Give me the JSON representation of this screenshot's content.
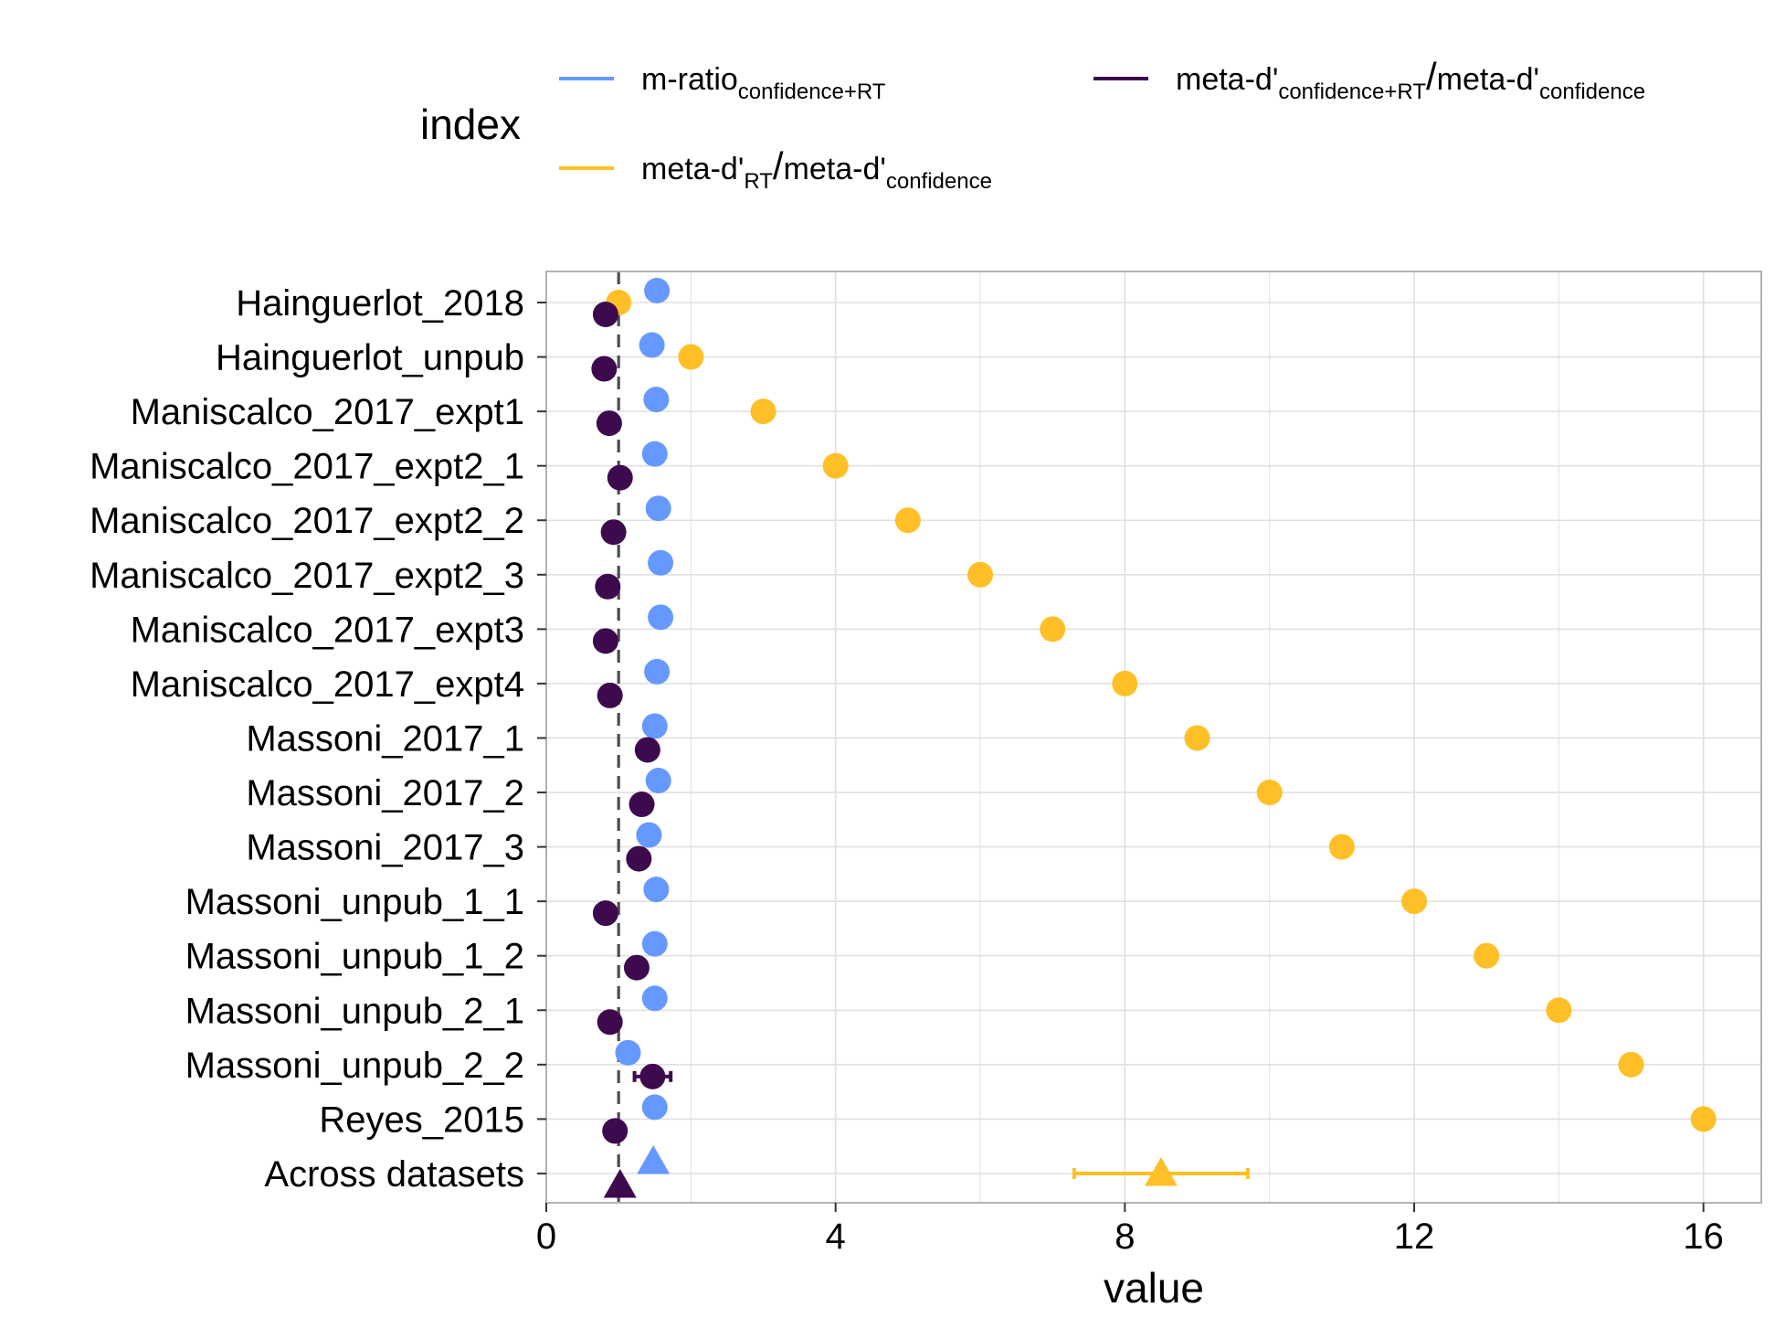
{
  "chart_data": {
    "type": "scatter",
    "xlabel": "value",
    "xlim": [
      0,
      16.8
    ],
    "xticks": [
      0,
      4,
      8,
      12,
      16
    ],
    "grid": true,
    "reference_line": {
      "x": 1,
      "style": "dashed",
      "color": "#4d4d4d"
    },
    "legend": {
      "title": "index",
      "position": "top",
      "entries": [
        {
          "key": "mratio",
          "parts": [
            {
              "t": "m-ratio"
            },
            {
              "t": "confidence+RT",
              "sub": true
            }
          ]
        },
        {
          "key": "combo",
          "parts": [
            {
              "t": "meta-d'"
            },
            {
              "t": "confidence+RT",
              "sub": true
            },
            {
              "t": "/",
              "big": true
            },
            {
              "t": "meta-d'"
            },
            {
              "t": "confidence",
              "sub": true
            }
          ]
        },
        {
          "key": "rt",
          "parts": [
            {
              "t": "meta-d'"
            },
            {
              "t": "RT",
              "sub": true
            },
            {
              "t": "/",
              "big": true
            },
            {
              "t": "meta-d'"
            },
            {
              "t": "confidence",
              "sub": true
            }
          ]
        }
      ]
    },
    "categories": [
      "Hainguerlot_2018",
      "Hainguerlot_unpub",
      "Maniscalco_2017_expt1",
      "Maniscalco_2017_expt2_1",
      "Maniscalco_2017_expt2_2",
      "Maniscalco_2017_expt2_3",
      "Maniscalco_2017_expt3",
      "Maniscalco_2017_expt4",
      "Massoni_2017_1",
      "Massoni_2017_2",
      "Massoni_2017_3",
      "Massoni_unpub_1_1",
      "Massoni_unpub_1_2",
      "Massoni_unpub_2_1",
      "Massoni_unpub_2_2",
      "Reyes_2015",
      "Across datasets"
    ],
    "series": [
      {
        "key": "mratio",
        "color": "#6699ff",
        "values": [
          1.53,
          1.46,
          1.52,
          1.5,
          1.55,
          1.58,
          1.58,
          1.53,
          1.5,
          1.55,
          1.42,
          1.52,
          1.5,
          1.5,
          1.13,
          1.5,
          1.48
        ],
        "errors": [
          null,
          null,
          null,
          null,
          null,
          null,
          null,
          null,
          null,
          null,
          null,
          null,
          null,
          null,
          null,
          null,
          null
        ]
      },
      {
        "key": "rt",
        "color": "#ffbf26",
        "values": [
          1.0,
          2.0,
          3.0,
          4.0,
          5.0,
          6.0,
          7.0,
          8.0,
          9.0,
          10.0,
          11.0,
          12.0,
          13.0,
          14.0,
          15.0,
          16.0,
          8.5
        ],
        "errors": [
          null,
          null,
          null,
          null,
          null,
          null,
          null,
          null,
          null,
          null,
          null,
          null,
          null,
          null,
          null,
          null,
          [
            7.3,
            9.7
          ]
        ]
      },
      {
        "key": "combo",
        "color": "#3d0a4d",
        "values": [
          0.82,
          0.8,
          0.87,
          1.02,
          0.93,
          0.85,
          0.82,
          0.88,
          1.4,
          1.32,
          1.28,
          0.82,
          1.25,
          0.88,
          1.47,
          0.95,
          1.02
        ],
        "errors": [
          null,
          null,
          null,
          null,
          null,
          null,
          null,
          null,
          null,
          null,
          null,
          null,
          null,
          null,
          [
            1.22,
            1.72
          ],
          null,
          null
        ]
      }
    ],
    "aggregate_category": "Across datasets"
  }
}
